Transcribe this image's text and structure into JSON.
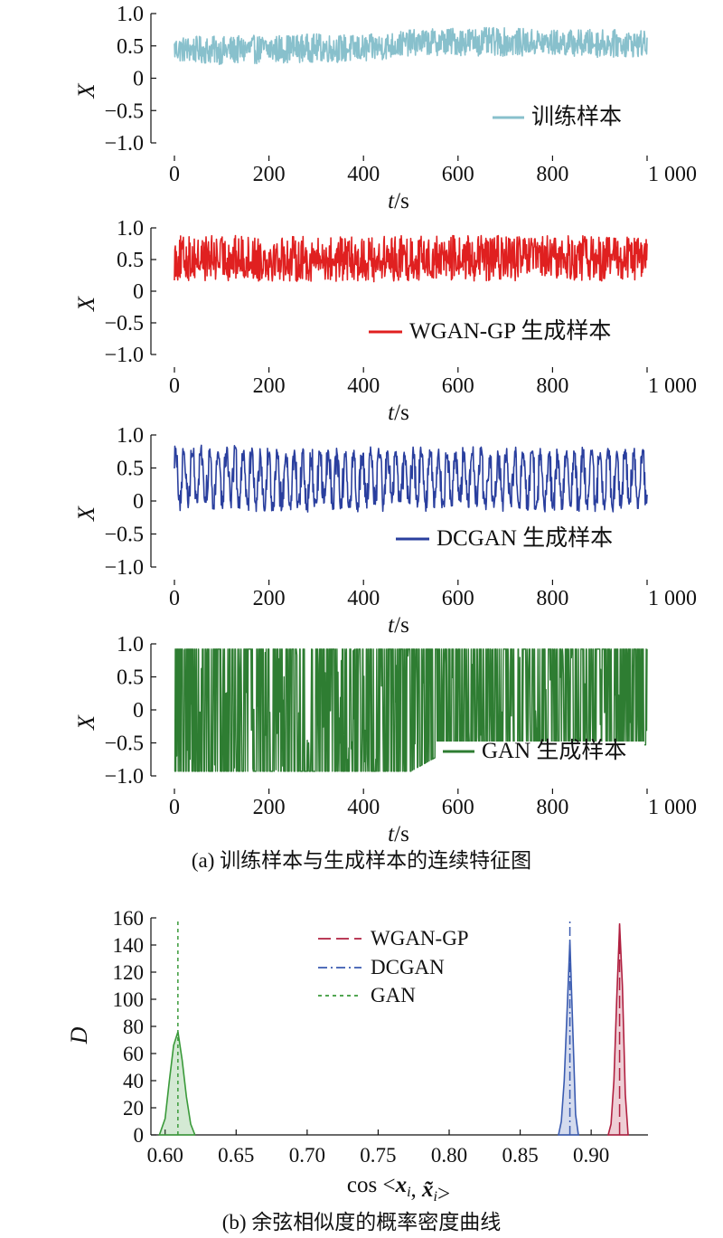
{
  "figure": {
    "caption_a": "(a) 训练样本与生成样本的连续特征图",
    "caption_b": "(b) 余弦相似度的概率密度曲线"
  },
  "chart_data": [
    {
      "type": "line",
      "panel": "a1",
      "xlabel": "t/s",
      "ylabel": "X",
      "xlim": [
        0,
        1000
      ],
      "ylim": [
        -1.0,
        1.0
      ],
      "xticks": [
        "0",
        "200",
        "400",
        "600",
        "800",
        "1 000"
      ],
      "yticks": [
        "1.0",
        "0.5",
        "0",
        "−0.5",
        "−1.0"
      ],
      "grid": false,
      "legend_position": "lower-right",
      "series": [
        {
          "name": "训练样本",
          "color": "#88c0cc",
          "x": [
            0,
            100,
            200,
            300,
            400,
            500,
            600,
            700,
            800,
            900,
            1000
          ],
          "y": [
            0.45,
            0.43,
            0.45,
            0.47,
            0.45,
            0.55,
            0.57,
            0.56,
            0.55,
            0.54,
            0.53
          ],
          "amplitude": [
            0.2,
            0.22,
            0.22,
            0.22,
            0.22,
            0.2,
            0.22,
            0.22,
            0.2,
            0.22,
            0.2
          ]
        }
      ]
    },
    {
      "type": "line",
      "panel": "a2",
      "xlabel": "t/s",
      "ylabel": "X",
      "xlim": [
        0,
        1000
      ],
      "ylim": [
        -1.0,
        1.0
      ],
      "xticks": [
        "0",
        "200",
        "400",
        "600",
        "800",
        "1 000"
      ],
      "yticks": [
        "1.0",
        "0.5",
        "0",
        "−0.5",
        "−1.0"
      ],
      "grid": false,
      "legend_position": "lower-right",
      "series": [
        {
          "name": "WGAN-GP 生成样本",
          "color": "#e02020",
          "x": [
            0,
            100,
            200,
            300,
            400,
            500,
            600,
            700,
            800,
            900,
            1000
          ],
          "y": [
            0.52,
            0.52,
            0.52,
            0.5,
            0.5,
            0.52,
            0.52,
            0.52,
            0.52,
            0.52,
            0.52
          ],
          "amplitude": [
            0.36,
            0.36,
            0.36,
            0.36,
            0.36,
            0.36,
            0.36,
            0.36,
            0.36,
            0.36,
            0.36
          ]
        }
      ]
    },
    {
      "type": "line",
      "panel": "a3",
      "xlabel": "t/s",
      "ylabel": "X",
      "xlim": [
        0,
        1000
      ],
      "ylim": [
        -1.0,
        1.0
      ],
      "xticks": [
        "0",
        "200",
        "400",
        "600",
        "800",
        "1 000"
      ],
      "yticks": [
        "1.0",
        "0.5",
        "0",
        "−0.5",
        "−1.0"
      ],
      "grid": false,
      "legend_position": "lower-right",
      "series": [
        {
          "name": "DCGAN 生成样本",
          "color": "#2a3f9e",
          "x": [
            0,
            100,
            200,
            300,
            400,
            500,
            600,
            700,
            800,
            900,
            1000
          ],
          "y": [
            0.35,
            0.35,
            0.33,
            0.33,
            0.33,
            0.33,
            0.35,
            0.33,
            0.33,
            0.33,
            0.33
          ],
          "amplitude": [
            0.5,
            0.5,
            0.5,
            0.5,
            0.5,
            0.5,
            0.5,
            0.5,
            0.5,
            0.5,
            0.5
          ]
        }
      ]
    },
    {
      "type": "line",
      "panel": "a4",
      "xlabel": "t/s",
      "ylabel": "X",
      "xlim": [
        0,
        1000
      ],
      "ylim": [
        -1.0,
        1.0
      ],
      "xticks": [
        "0",
        "200",
        "400",
        "600",
        "800",
        "1 000"
      ],
      "yticks": [
        "1.0",
        "0.5",
        "0",
        "−0.5",
        "−1.0"
      ],
      "grid": false,
      "legend_position": "lower-right",
      "series": [
        {
          "name": "GAN 生成样本",
          "color": "#2e7d32",
          "x": [
            0,
            100,
            200,
            300,
            400,
            500,
            600,
            700,
            800,
            900,
            1000
          ],
          "y": [
            0.0,
            0.0,
            0.0,
            0.0,
            0.0,
            0.0,
            0.2,
            0.2,
            0.2,
            0.2,
            0.2
          ],
          "amplitude": [
            0.93,
            0.93,
            0.93,
            0.93,
            0.93,
            0.93,
            0.73,
            0.73,
            0.73,
            0.73,
            0.73
          ]
        }
      ]
    },
    {
      "type": "area",
      "panel": "b",
      "xlabel": "cos <xi, x̃i>",
      "ylabel": "D",
      "xlim": [
        0.59,
        0.94
      ],
      "ylim": [
        0,
        160
      ],
      "xticks": [
        "0.60",
        "0.65",
        "0.70",
        "0.75",
        "0.80",
        "0.85",
        "0.90"
      ],
      "yticks": [
        "160",
        "140",
        "120",
        "100",
        "80",
        "60",
        "40",
        "20",
        "0"
      ],
      "grid": false,
      "legend_position": "top-center",
      "series": [
        {
          "name": "WGAN-GP",
          "color": "#b02040",
          "dash": "long-dash",
          "x": [
            0.912,
            0.914,
            0.916,
            0.918,
            0.92,
            0.922,
            0.924,
            0.926
          ],
          "y": [
            0,
            8,
            40,
            100,
            155,
            110,
            30,
            0
          ]
        },
        {
          "name": "DCGAN",
          "color": "#3a5bb0",
          "dash": "dash-dot",
          "x": [
            0.877,
            0.879,
            0.881,
            0.883,
            0.885,
            0.887,
            0.889,
            0.891
          ],
          "y": [
            0,
            10,
            40,
            90,
            143,
            80,
            15,
            0
          ]
        },
        {
          "name": "GAN",
          "color": "#3a9a3a",
          "dash": "dotted",
          "x": [
            0.596,
            0.6,
            0.603,
            0.606,
            0.609,
            0.612,
            0.615,
            0.618,
            0.621
          ],
          "y": [
            0,
            12,
            40,
            66,
            76,
            55,
            28,
            8,
            0
          ]
        }
      ]
    }
  ]
}
